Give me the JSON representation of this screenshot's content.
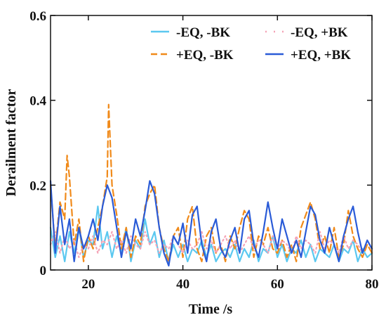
{
  "chart_data": {
    "type": "line",
    "title": "",
    "xlabel": "Time /s",
    "ylabel": "Derailment factor",
    "xlim": [
      12,
      80
    ],
    "ylim": [
      0,
      0.6
    ],
    "x_ticks": [
      20,
      40,
      60,
      80
    ],
    "y_ticks": [
      0,
      0.2,
      0.4,
      0.6
    ],
    "x_tick_labels": [
      "20",
      "40",
      "60",
      "80"
    ],
    "y_tick_labels": [
      "0",
      "0.2",
      "0.4",
      "0.6"
    ],
    "grid": false,
    "legend_position": "top-right",
    "legend_columns": 2,
    "series": [
      {
        "name": "-EQ, -BK",
        "color": "#5bc8f0",
        "style": "solid",
        "x": [
          12,
          13,
          14,
          15,
          16,
          17,
          18,
          19,
          20,
          21,
          22,
          23,
          24,
          25,
          26,
          27,
          28,
          29,
          30,
          31,
          32,
          33,
          34,
          35,
          36,
          37,
          38,
          39,
          40,
          41,
          42,
          43,
          44,
          45,
          46,
          47,
          48,
          49,
          50,
          51,
          52,
          53,
          54,
          55,
          56,
          57,
          58,
          59,
          60,
          61,
          62,
          63,
          64,
          65,
          66,
          67,
          68,
          69,
          70,
          71,
          72,
          73,
          74,
          75,
          76,
          77,
          78,
          79,
          80
        ],
        "y": [
          0.1,
          0.03,
          0.08,
          0.02,
          0.09,
          0.04,
          0.1,
          0.03,
          0.07,
          0.06,
          0.15,
          0.05,
          0.09,
          0.03,
          0.08,
          0.04,
          0.1,
          0.02,
          0.07,
          0.05,
          0.12,
          0.06,
          0.09,
          0.03,
          0.07,
          0.02,
          0.06,
          0.03,
          0.06,
          0.02,
          0.05,
          0.04,
          0.07,
          0.03,
          0.06,
          0.02,
          0.04,
          0.05,
          0.03,
          0.06,
          0.02,
          0.05,
          0.03,
          0.07,
          0.02,
          0.05,
          0.04,
          0.08,
          0.03,
          0.06,
          0.02,
          0.05,
          0.04,
          0.07,
          0.03,
          0.06,
          0.02,
          0.05,
          0.04,
          0.03,
          0.06,
          0.02,
          0.05,
          0.04,
          0.07,
          0.02,
          0.05,
          0.03,
          0.04
        ]
      },
      {
        "name": "+EQ, -BK",
        "color": "#f08a1a",
        "style": "dashed",
        "x": [
          12,
          13,
          14,
          15,
          15.5,
          16,
          17,
          18,
          19,
          20,
          21,
          22,
          23,
          24,
          24.3,
          25,
          26,
          27,
          28,
          29,
          30,
          31,
          32,
          33,
          34,
          35,
          36,
          37,
          38,
          39,
          40,
          41,
          42,
          43,
          44,
          45,
          46,
          47,
          48,
          49,
          50,
          51,
          52,
          53,
          54,
          55,
          56,
          57,
          58,
          59,
          60,
          61,
          62,
          63,
          64,
          65,
          66,
          67,
          68,
          69,
          70,
          71,
          72,
          73,
          74,
          75,
          76,
          77,
          78,
          79,
          80
        ],
        "y": [
          0.2,
          0.05,
          0.16,
          0.12,
          0.27,
          0.22,
          0.06,
          0.12,
          0.02,
          0.08,
          0.05,
          0.1,
          0.15,
          0.22,
          0.39,
          0.2,
          0.13,
          0.05,
          0.1,
          0.03,
          0.08,
          0.06,
          0.15,
          0.18,
          0.2,
          0.1,
          0.05,
          0.02,
          0.08,
          0.1,
          0.03,
          0.12,
          0.15,
          0.05,
          0.02,
          0.08,
          0.1,
          0.04,
          0.06,
          0.02,
          0.08,
          0.05,
          0.1,
          0.14,
          0.12,
          0.03,
          0.08,
          0.06,
          0.1,
          0.05,
          0.04,
          0.07,
          0.03,
          0.06,
          0.02,
          0.1,
          0.13,
          0.16,
          0.12,
          0.05,
          0.08,
          0.04,
          0.1,
          0.03,
          0.06,
          0.14,
          0.08,
          0.05,
          0.03,
          0.06,
          0.04
        ]
      },
      {
        "name": "-EQ, +BK",
        "color": "#f4a3b6",
        "style": "dotted",
        "x": [
          12,
          13,
          14,
          15,
          16,
          17,
          18,
          19,
          20,
          21,
          22,
          23,
          24,
          25,
          26,
          27,
          28,
          29,
          30,
          31,
          32,
          33,
          34,
          35,
          36,
          37,
          38,
          39,
          40,
          41,
          42,
          43,
          44,
          45,
          46,
          47,
          48,
          49,
          50,
          51,
          52,
          53,
          54,
          55,
          56,
          57,
          58,
          59,
          60,
          61,
          62,
          63,
          64,
          65,
          66,
          67,
          68,
          69,
          70,
          71,
          72,
          73,
          74,
          75,
          76,
          77,
          78,
          79,
          80
        ],
        "y": [
          0.06,
          0.09,
          0.04,
          0.08,
          0.05,
          0.07,
          0.03,
          0.06,
          0.05,
          0.08,
          0.04,
          0.07,
          0.06,
          0.09,
          0.05,
          0.07,
          0.04,
          0.08,
          0.06,
          0.05,
          0.09,
          0.06,
          0.07,
          0.04,
          0.06,
          0.05,
          0.08,
          0.06,
          0.04,
          0.07,
          0.05,
          0.06,
          0.09,
          0.05,
          0.07,
          0.04,
          0.06,
          0.08,
          0.05,
          0.07,
          0.04,
          0.06,
          0.08,
          0.05,
          0.07,
          0.06,
          0.04,
          0.08,
          0.05,
          0.07,
          0.06,
          0.04,
          0.08,
          0.05,
          0.07,
          0.06,
          0.04,
          0.09,
          0.05,
          0.07,
          0.06,
          0.04,
          0.08,
          0.05,
          0.07,
          0.06,
          0.04,
          0.07,
          0.05
        ]
      },
      {
        "name": "+EQ, +BK",
        "color": "#2a5bd7",
        "style": "solid",
        "x": [
          12,
          13,
          14,
          15,
          16,
          17,
          18,
          19,
          20,
          21,
          22,
          23,
          24,
          25,
          26,
          27,
          28,
          29,
          30,
          31,
          32,
          33,
          34,
          35,
          36,
          37,
          38,
          39,
          40,
          41,
          42,
          43,
          44,
          45,
          46,
          47,
          48,
          49,
          50,
          51,
          52,
          53,
          54,
          55,
          56,
          57,
          58,
          59,
          60,
          61,
          62,
          63,
          64,
          65,
          66,
          67,
          68,
          69,
          70,
          71,
          72,
          73,
          74,
          75,
          76,
          77,
          78,
          79,
          80
        ],
        "y": [
          0.21,
          0.04,
          0.15,
          0.06,
          0.12,
          0.02,
          0.1,
          0.05,
          0.08,
          0.12,
          0.07,
          0.15,
          0.2,
          0.17,
          0.1,
          0.03,
          0.09,
          0.05,
          0.12,
          0.08,
          0.14,
          0.21,
          0.18,
          0.1,
          0.04,
          0.01,
          0.08,
          0.06,
          0.11,
          0.04,
          0.13,
          0.15,
          0.06,
          0.02,
          0.09,
          0.12,
          0.05,
          0.03,
          0.07,
          0.1,
          0.04,
          0.12,
          0.14,
          0.06,
          0.03,
          0.09,
          0.16,
          0.1,
          0.05,
          0.12,
          0.08,
          0.04,
          0.07,
          0.03,
          0.09,
          0.15,
          0.13,
          0.07,
          0.04,
          0.1,
          0.06,
          0.02,
          0.08,
          0.12,
          0.15,
          0.09,
          0.04,
          0.07,
          0.05
        ]
      }
    ]
  }
}
